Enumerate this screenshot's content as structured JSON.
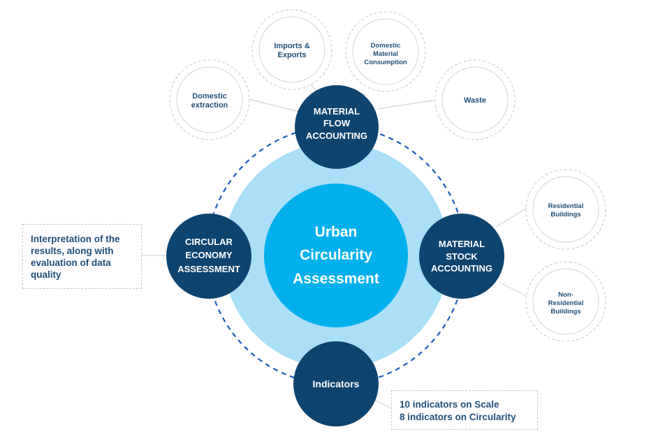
{
  "center": {
    "lines": [
      "Urban",
      "Circularity",
      "Assessment"
    ]
  },
  "hubs": {
    "mfa": {
      "lines": [
        "MATERIAL",
        "FLOW",
        "ACCOUNTING"
      ]
    },
    "msa": {
      "lines": [
        "MATERIAL",
        "STOCK",
        "ACCOUNTING"
      ]
    },
    "cea": {
      "lines": [
        "CIRCULAR",
        "ECONOMY",
        "ASSESSMENT"
      ]
    },
    "indicators": {
      "lines": [
        "Indicators"
      ]
    }
  },
  "satellites": {
    "domestic_extraction": {
      "lines": [
        "Domestic",
        "extraction"
      ]
    },
    "imports_exports": {
      "lines": [
        "Imports &",
        "Exports"
      ]
    },
    "dmc": {
      "lines": [
        "Domestic",
        "Material",
        "Consumption"
      ]
    },
    "waste": {
      "lines": [
        "Waste"
      ]
    },
    "residential": {
      "lines": [
        "Residential",
        "Buildings"
      ]
    },
    "non_residential": {
      "lines": [
        "Non-",
        "Residential",
        "Buildings"
      ]
    }
  },
  "notes": {
    "interpretation": {
      "lines": [
        "Interpretation of the",
        "results, along with",
        "evaluation of data",
        "quality"
      ]
    },
    "indicators_info": {
      "lines": [
        "10 indicators on Scale",
        "8 indicators on Circularity"
      ]
    }
  },
  "colors": {
    "dark_navy": "#0d4470",
    "center_blue": "#00b0ec",
    "light_halo": "#abdff8",
    "dashed_ring": "#1a5dbf",
    "satellite_text": "#1f4f78",
    "satellite_border": "#d4d4d4"
  }
}
